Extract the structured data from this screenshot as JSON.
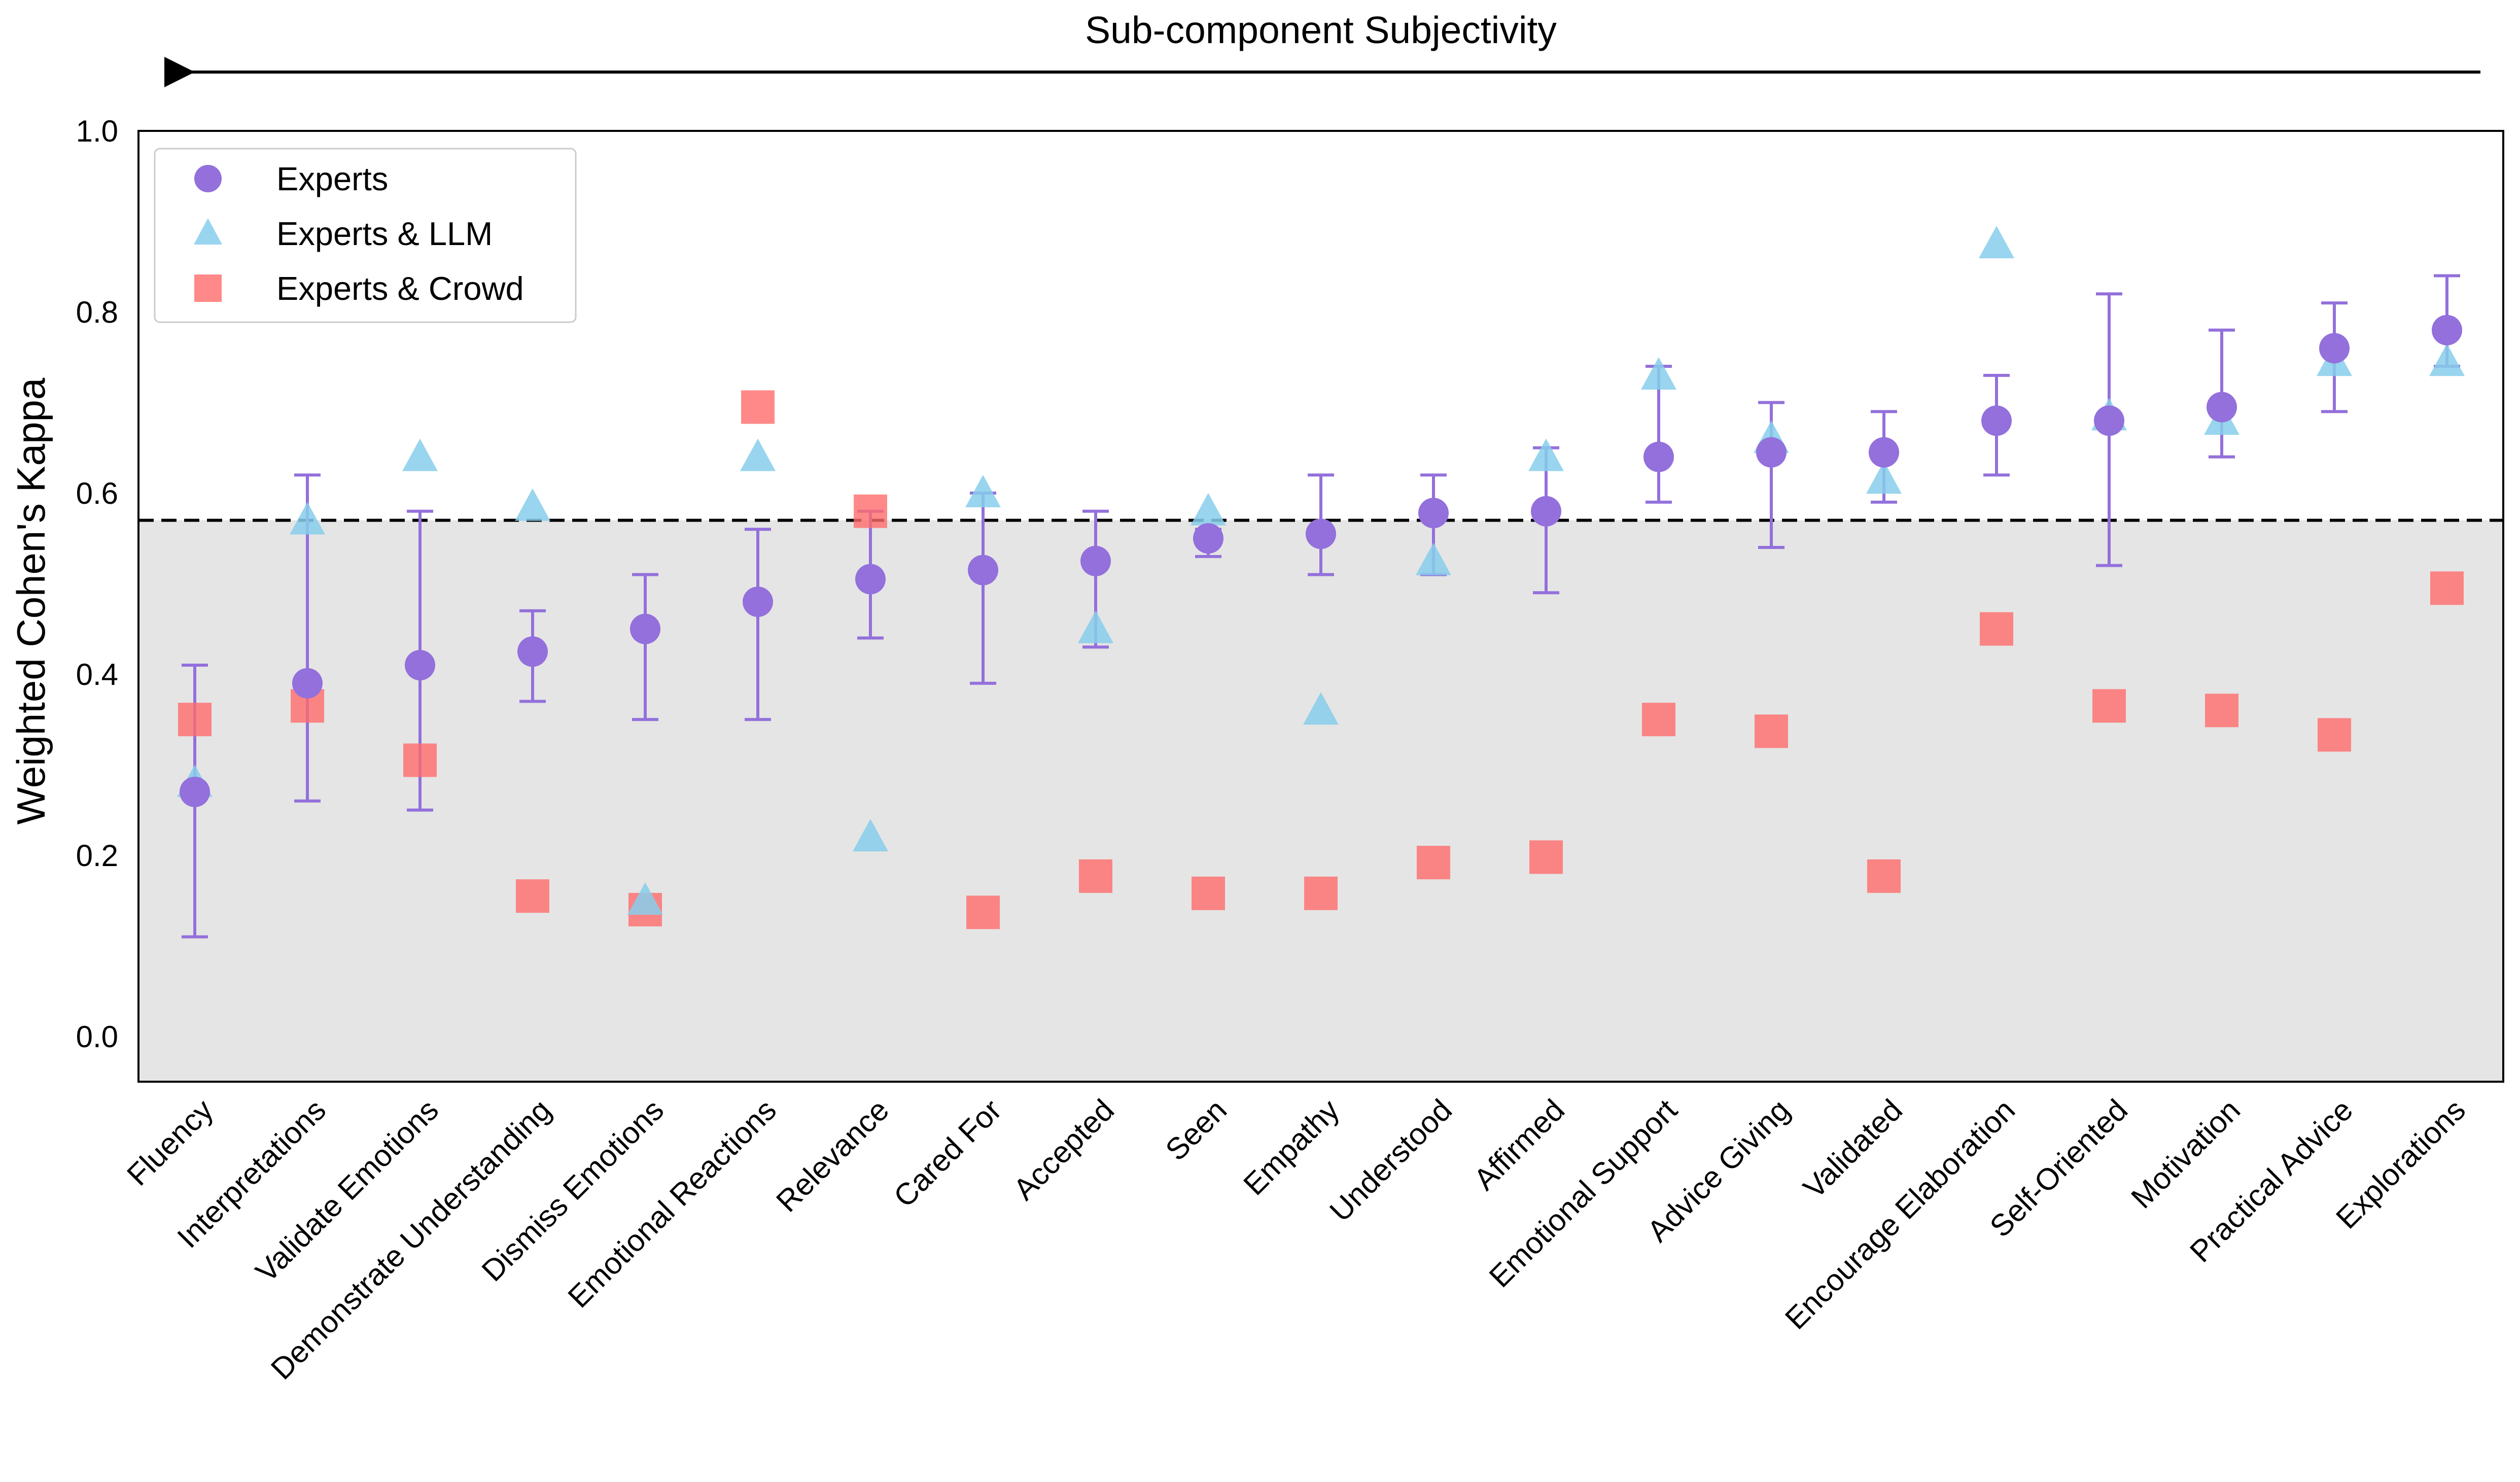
{
  "chart_data": {
    "type": "scatter",
    "top_annotation": "Sub-component Subjectivity",
    "ylabel": "Weighted Cohen's Kappa",
    "xlabel": "",
    "ylim": [
      -0.05,
      1.0
    ],
    "yticks": [
      "0.0",
      "0.2",
      "0.4",
      "0.6",
      "0.8",
      "1.0"
    ],
    "ytick_values": [
      0.0,
      0.2,
      0.4,
      0.6,
      0.8,
      1.0
    ],
    "threshold": 0.57,
    "grid": false,
    "legend_position": "top-left",
    "colors": {
      "experts": "#9370DB",
      "experts_llm": "#87CEEB",
      "experts_crowd": "#FF6B6B",
      "shade": "#E5E5E5",
      "threshold_line": "#000000"
    },
    "categories": [
      "Fluency",
      "Interpretations",
      "Validate Emotions",
      "Demonstrate Understanding",
      "Dismiss Emotions",
      "Emotional Reactions",
      "Relevance",
      "Cared For",
      "Accepted",
      "Seen",
      "Empathy",
      "Understood",
      "Affirmed",
      "Emotional Support",
      "Advice Giving",
      "Validated",
      "Encourage Elaboration",
      "Self-Oriented",
      "Motivation",
      "Practical Advice",
      "Explorations"
    ],
    "series": [
      {
        "name": "Experts",
        "marker": "circle",
        "values": [
          0.27,
          0.39,
          0.41,
          0.425,
          0.45,
          0.48,
          0.505,
          0.515,
          0.525,
          0.55,
          0.555,
          0.578,
          0.58,
          0.64,
          0.645,
          0.645,
          0.68,
          0.68,
          0.695,
          0.76,
          0.78
        ],
        "error_low": [
          0.11,
          0.26,
          0.25,
          0.37,
          0.35,
          0.35,
          0.44,
          0.39,
          0.43,
          0.53,
          0.51,
          0.51,
          0.49,
          0.59,
          0.54,
          0.59,
          0.62,
          0.52,
          0.64,
          0.69,
          0.74
        ],
        "error_high": [
          0.41,
          0.62,
          0.58,
          0.47,
          0.51,
          0.56,
          0.58,
          0.6,
          0.58,
          0.56,
          0.62,
          0.62,
          0.65,
          0.74,
          0.7,
          0.69,
          0.73,
          0.82,
          0.78,
          0.81,
          0.84
        ]
      },
      {
        "name": "Experts & LLM",
        "marker": "triangle",
        "values": [
          0.28,
          0.57,
          0.64,
          0.585,
          0.15,
          0.64,
          0.22,
          0.6,
          0.45,
          0.58,
          0.36,
          0.525,
          0.64,
          0.73,
          0.66,
          0.615,
          0.875,
          0.685,
          0.68,
          0.745,
          0.745
        ]
      },
      {
        "name": "Experts & Crowd",
        "marker": "square",
        "values": [
          0.35,
          0.365,
          0.305,
          0.155,
          0.14,
          0.695,
          0.58,
          0.137,
          0.177,
          0.158,
          0.158,
          0.192,
          0.198,
          0.35,
          0.337,
          0.177,
          0.45,
          0.365,
          0.36,
          0.333,
          0.495
        ]
      }
    ]
  }
}
